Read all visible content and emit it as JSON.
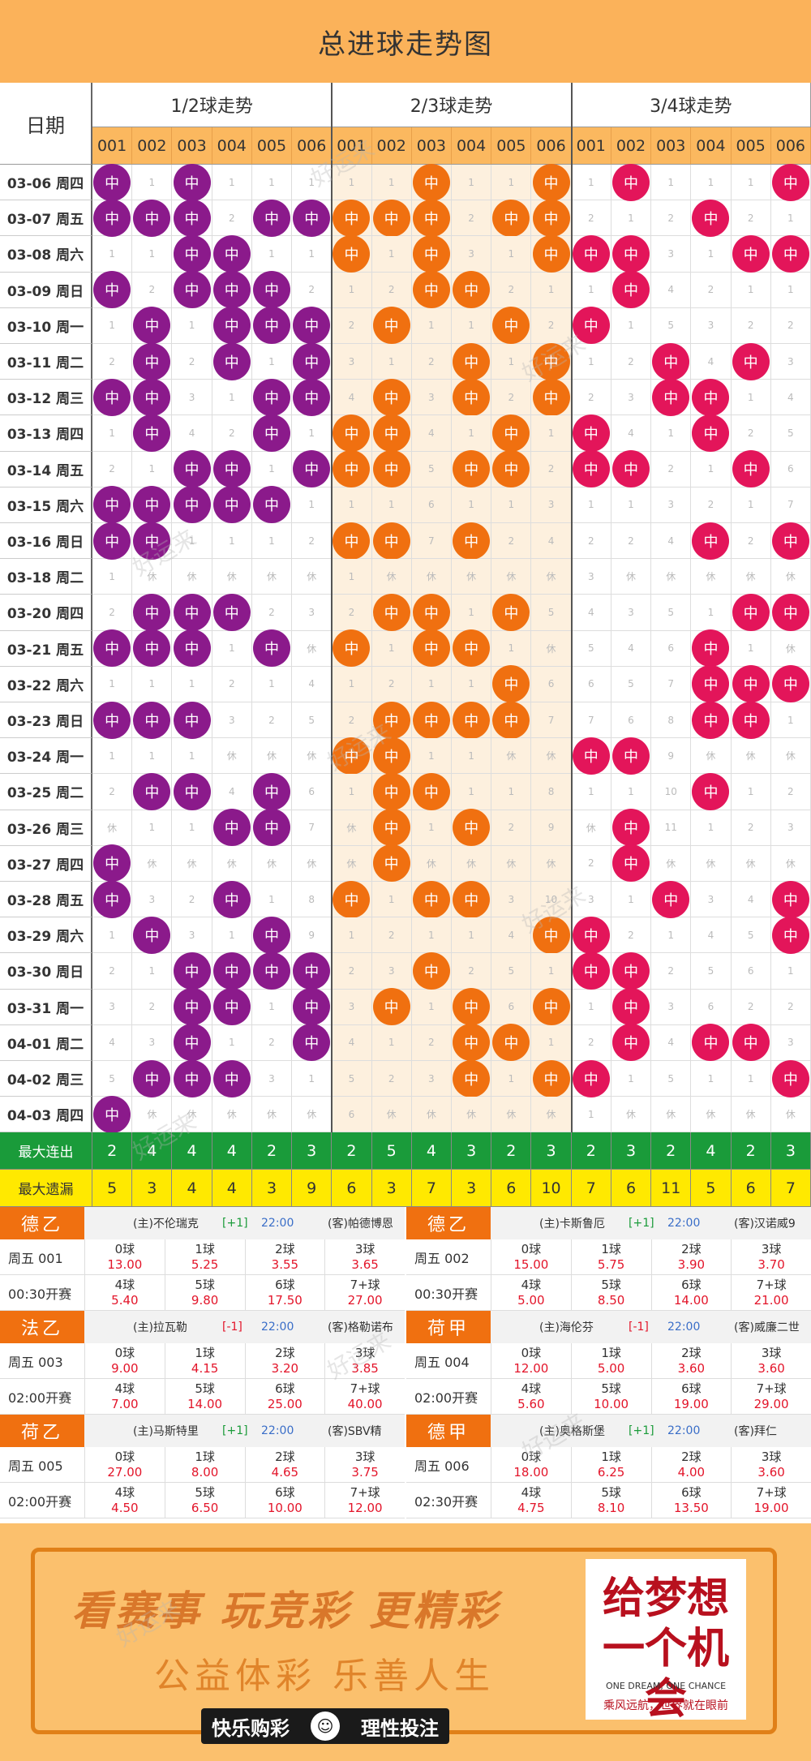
{
  "title": "总进球走势图",
  "date_header": "日期",
  "sections": [
    "1/2球走势",
    "2/3球走势",
    "3/4球走势"
  ],
  "sub_headers": [
    "001",
    "002",
    "003",
    "004",
    "005",
    "006"
  ],
  "hit_label": "中",
  "rest_label": "休",
  "colors": {
    "sec1": "#8b1a8b",
    "sec2": "#f07010",
    "sec3": "#e3155a",
    "header": "#fbb25a",
    "green": "#1a9b3a",
    "yellow": "#ffe900"
  },
  "rows": [
    {
      "date": "03-06 周四",
      "cells": [
        "H",
        "1",
        "H",
        "1",
        "1",
        "1",
        "1",
        "1",
        "H",
        "1",
        "1",
        "H",
        "1",
        "H",
        "1",
        "1",
        "1",
        "H"
      ]
    },
    {
      "date": "03-07 周五",
      "cells": [
        "H",
        "H",
        "H",
        "2",
        "H",
        "H",
        "H",
        "H",
        "H",
        "2",
        "H",
        "H",
        "2",
        "1",
        "2",
        "H",
        "2",
        "1"
      ]
    },
    {
      "date": "03-08 周六",
      "cells": [
        "1",
        "1",
        "H",
        "H",
        "1",
        "1",
        "H",
        "1",
        "H",
        "3",
        "1",
        "H",
        "H",
        "H",
        "3",
        "1",
        "H",
        "H"
      ]
    },
    {
      "date": "03-09 周日",
      "cells": [
        "H",
        "2",
        "H",
        "H",
        "H",
        "2",
        "1",
        "2",
        "H",
        "H",
        "2",
        "1",
        "1",
        "H",
        "4",
        "2",
        "1",
        "1"
      ]
    },
    {
      "date": "03-10 周一",
      "cells": [
        "1",
        "H",
        "1",
        "H",
        "H",
        "H",
        "2",
        "H",
        "1",
        "1",
        "H",
        "2",
        "H",
        "1",
        "5",
        "3",
        "2",
        "2"
      ]
    },
    {
      "date": "03-11 周二",
      "cells": [
        "2",
        "H",
        "2",
        "H",
        "1",
        "H",
        "3",
        "1",
        "2",
        "H",
        "1",
        "H",
        "1",
        "2",
        "H",
        "4",
        "H",
        "3"
      ]
    },
    {
      "date": "03-12 周三",
      "cells": [
        "H",
        "H",
        "3",
        "1",
        "H",
        "H",
        "4",
        "H",
        "3",
        "H",
        "2",
        "H",
        "2",
        "3",
        "H",
        "H",
        "1",
        "4"
      ]
    },
    {
      "date": "03-13 周四",
      "cells": [
        "1",
        "H",
        "4",
        "2",
        "H",
        "1",
        "H",
        "H",
        "4",
        "1",
        "H",
        "1",
        "H",
        "4",
        "1",
        "H",
        "2",
        "5"
      ]
    },
    {
      "date": "03-14 周五",
      "cells": [
        "2",
        "1",
        "H",
        "H",
        "1",
        "H",
        "H",
        "H",
        "5",
        "H",
        "H",
        "2",
        "H",
        "H",
        "2",
        "1",
        "H",
        "6"
      ]
    },
    {
      "date": "03-15 周六",
      "cells": [
        "H",
        "H",
        "H",
        "H",
        "H",
        "1",
        "1",
        "1",
        "6",
        "1",
        "1",
        "3",
        "1",
        "1",
        "3",
        "2",
        "1",
        "7"
      ]
    },
    {
      "date": "03-16 周日",
      "cells": [
        "H",
        "H",
        "1",
        "1",
        "1",
        "2",
        "H",
        "H",
        "7",
        "H",
        "2",
        "4",
        "2",
        "2",
        "4",
        "H",
        "2",
        "H"
      ]
    },
    {
      "date": "03-18 周二",
      "cells": [
        "1",
        "R",
        "R",
        "R",
        "R",
        "R",
        "1",
        "R",
        "R",
        "R",
        "R",
        "R",
        "3",
        "R",
        "R",
        "R",
        "R",
        "R"
      ]
    },
    {
      "date": "03-20 周四",
      "cells": [
        "2",
        "H",
        "H",
        "H",
        "2",
        "3",
        "2",
        "H",
        "H",
        "1",
        "H",
        "5",
        "4",
        "3",
        "5",
        "1",
        "H",
        "H"
      ]
    },
    {
      "date": "03-21 周五",
      "cells": [
        "H",
        "H",
        "H",
        "1",
        "H",
        "R",
        "H",
        "1",
        "H",
        "H",
        "1",
        "R",
        "5",
        "4",
        "6",
        "H",
        "1",
        "R"
      ]
    },
    {
      "date": "03-22 周六",
      "cells": [
        "1",
        "1",
        "1",
        "2",
        "1",
        "4",
        "1",
        "2",
        "1",
        "1",
        "H",
        "6",
        "6",
        "5",
        "7",
        "H",
        "H",
        "H"
      ]
    },
    {
      "date": "03-23 周日",
      "cells": [
        "H",
        "H",
        "H",
        "3",
        "2",
        "5",
        "2",
        "H",
        "H",
        "H",
        "H",
        "7",
        "7",
        "6",
        "8",
        "H",
        "H",
        "1"
      ]
    },
    {
      "date": "03-24 周一",
      "cells": [
        "1",
        "1",
        "1",
        "R",
        "R",
        "R",
        "H",
        "H",
        "1",
        "1",
        "R",
        "R",
        "H",
        "H",
        "9",
        "R",
        "R",
        "R"
      ]
    },
    {
      "date": "03-25 周二",
      "cells": [
        "2",
        "H",
        "H",
        "4",
        "H",
        "6",
        "1",
        "H",
        "H",
        "1",
        "1",
        "8",
        "1",
        "1",
        "10",
        "H",
        "1",
        "2"
      ]
    },
    {
      "date": "03-26 周三",
      "cells": [
        "R",
        "1",
        "1",
        "H",
        "H",
        "7",
        "R",
        "H",
        "1",
        "H",
        "2",
        "9",
        "R",
        "H",
        "11",
        "1",
        "2",
        "3"
      ]
    },
    {
      "date": "03-27 周四",
      "cells": [
        "H",
        "R",
        "R",
        "R",
        "R",
        "R",
        "R",
        "H",
        "R",
        "R",
        "R",
        "R",
        "2",
        "H",
        "R",
        "R",
        "R",
        "R"
      ]
    },
    {
      "date": "03-28 周五",
      "cells": [
        "H",
        "3",
        "2",
        "H",
        "1",
        "8",
        "H",
        "1",
        "H",
        "H",
        "3",
        "10",
        "3",
        "1",
        "H",
        "3",
        "4",
        "H"
      ]
    },
    {
      "date": "03-29 周六",
      "cells": [
        "1",
        "H",
        "3",
        "1",
        "H",
        "9",
        "1",
        "2",
        "1",
        "1",
        "4",
        "H",
        "H",
        "2",
        "1",
        "4",
        "5",
        "H"
      ]
    },
    {
      "date": "03-30 周日",
      "cells": [
        "2",
        "1",
        "H",
        "H",
        "H",
        "H",
        "2",
        "3",
        "H",
        "2",
        "5",
        "1",
        "H",
        "H",
        "2",
        "5",
        "6",
        "1"
      ]
    },
    {
      "date": "03-31 周一",
      "cells": [
        "3",
        "2",
        "H",
        "H",
        "1",
        "H",
        "3",
        "H",
        "1",
        "H",
        "6",
        "H",
        "1",
        "H",
        "3",
        "6",
        "2",
        "2"
      ]
    },
    {
      "date": "04-01 周二",
      "cells": [
        "4",
        "3",
        "H",
        "1",
        "2",
        "H",
        "4",
        "1",
        "2",
        "H",
        "H",
        "1",
        "2",
        "H",
        "4",
        "H",
        "H",
        "3"
      ]
    },
    {
      "date": "04-02 周三",
      "cells": [
        "5",
        "H",
        "H",
        "H",
        "3",
        "1",
        "5",
        "2",
        "3",
        "H",
        "1",
        "H",
        "H",
        "1",
        "5",
        "1",
        "1",
        "H"
      ]
    },
    {
      "date": "04-03 周四",
      "cells": [
        "H",
        "R",
        "R",
        "R",
        "R",
        "R",
        "6",
        "R",
        "R",
        "R",
        "R",
        "R",
        "1",
        "R",
        "R",
        "R",
        "R",
        "R"
      ]
    }
  ],
  "stats": [
    {
      "label": "最大连出",
      "values": [
        "2",
        "4",
        "4",
        "4",
        "2",
        "3",
        "2",
        "5",
        "4",
        "3",
        "2",
        "3",
        "2",
        "3",
        "2",
        "4",
        "2",
        "3"
      ]
    },
    {
      "label": "最大遗漏",
      "values": [
        "5",
        "3",
        "4",
        "4",
        "3",
        "9",
        "6",
        "3",
        "7",
        "3",
        "6",
        "10",
        "7",
        "6",
        "11",
        "5",
        "6",
        "7"
      ]
    }
  ],
  "matches": [
    {
      "league": "德乙",
      "lc": "or",
      "home": "(主)不伦瑞克",
      "hc": "[+1]",
      "hcc": "gn",
      "time": "22:00",
      "away": "(客)帕德博恩",
      "code": "周五 001",
      "kick": "00:30开赛",
      "odds": [
        [
          "0球",
          "13.00"
        ],
        [
          "1球",
          "5.25"
        ],
        [
          "2球",
          "3.55"
        ],
        [
          "3球",
          "3.65"
        ],
        [
          "4球",
          "5.40"
        ],
        [
          "5球",
          "9.80"
        ],
        [
          "6球",
          "17.50"
        ],
        [
          "7+球",
          "27.00"
        ]
      ]
    },
    {
      "league": "德乙",
      "lc": "or",
      "home": "(主)卡斯鲁厄",
      "hc": "[+1]",
      "hcc": "gn",
      "time": "22:00",
      "away": "(客)汉诺威9",
      "code": "周五 002",
      "kick": "00:30开赛",
      "odds": [
        [
          "0球",
          "15.00"
        ],
        [
          "1球",
          "5.75"
        ],
        [
          "2球",
          "3.90"
        ],
        [
          "3球",
          "3.70"
        ],
        [
          "4球",
          "5.00"
        ],
        [
          "5球",
          "8.50"
        ],
        [
          "6球",
          "14.00"
        ],
        [
          "7+球",
          "21.00"
        ]
      ]
    },
    {
      "league": "法乙",
      "lc": "or",
      "home": "(主)拉瓦勒",
      "hc": "[-1]",
      "hcc": "rd",
      "time": "22:00",
      "away": "(客)格勒诺布",
      "code": "周五 003",
      "kick": "02:00开赛",
      "odds": [
        [
          "0球",
          "9.00"
        ],
        [
          "1球",
          "4.15"
        ],
        [
          "2球",
          "3.20"
        ],
        [
          "3球",
          "3.85"
        ],
        [
          "4球",
          "7.00"
        ],
        [
          "5球",
          "14.00"
        ],
        [
          "6球",
          "25.00"
        ],
        [
          "7+球",
          "40.00"
        ]
      ]
    },
    {
      "league": "荷甲",
      "lc": "or",
      "home": "(主)海伦芬",
      "hc": "[-1]",
      "hcc": "rd",
      "time": "22:00",
      "away": "(客)威廉二世",
      "code": "周五 004",
      "kick": "02:00开赛",
      "odds": [
        [
          "0球",
          "12.00"
        ],
        [
          "1球",
          "5.00"
        ],
        [
          "2球",
          "3.60"
        ],
        [
          "3球",
          "3.60"
        ],
        [
          "4球",
          "5.60"
        ],
        [
          "5球",
          "10.00"
        ],
        [
          "6球",
          "19.00"
        ],
        [
          "7+球",
          "29.00"
        ]
      ]
    },
    {
      "league": "荷乙",
      "lc": "or",
      "home": "(主)马斯特里",
      "hc": "[+1]",
      "hcc": "gn",
      "time": "22:00",
      "away": "(客)SBV精",
      "code": "周五 005",
      "kick": "02:00开赛",
      "odds": [
        [
          "0球",
          "27.00"
        ],
        [
          "1球",
          "8.00"
        ],
        [
          "2球",
          "4.65"
        ],
        [
          "3球",
          "3.75"
        ],
        [
          "4球",
          "4.50"
        ],
        [
          "5球",
          "6.50"
        ],
        [
          "6球",
          "10.00"
        ],
        [
          "7+球",
          "12.00"
        ]
      ]
    },
    {
      "league": "德甲",
      "lc": "or",
      "home": "(主)奥格斯堡",
      "hc": "[+1]",
      "hcc": "gn",
      "time": "22:00",
      "away": "(客)拜仁",
      "code": "周五 006",
      "kick": "02:30开赛",
      "odds": [
        [
          "0球",
          "18.00"
        ],
        [
          "1球",
          "6.25"
        ],
        [
          "2球",
          "4.00"
        ],
        [
          "3球",
          "3.60"
        ],
        [
          "4球",
          "4.75"
        ],
        [
          "5球",
          "8.10"
        ],
        [
          "6球",
          "13.50"
        ],
        [
          "7+球",
          "19.00"
        ]
      ]
    }
  ],
  "banner": {
    "slogan1": "看赛事 玩竞彩 更精彩",
    "slogan2": "公益体彩 乐善人生",
    "dream_title": "给梦想一个机会",
    "dream_en": "ONE DREAM, ONE CHANCE",
    "dream_cn": "乘风远航，世界就在眼前",
    "left_tag": "快乐购彩",
    "right_tag": "理性投注",
    "smile": "☺"
  },
  "watermark": "好运来"
}
